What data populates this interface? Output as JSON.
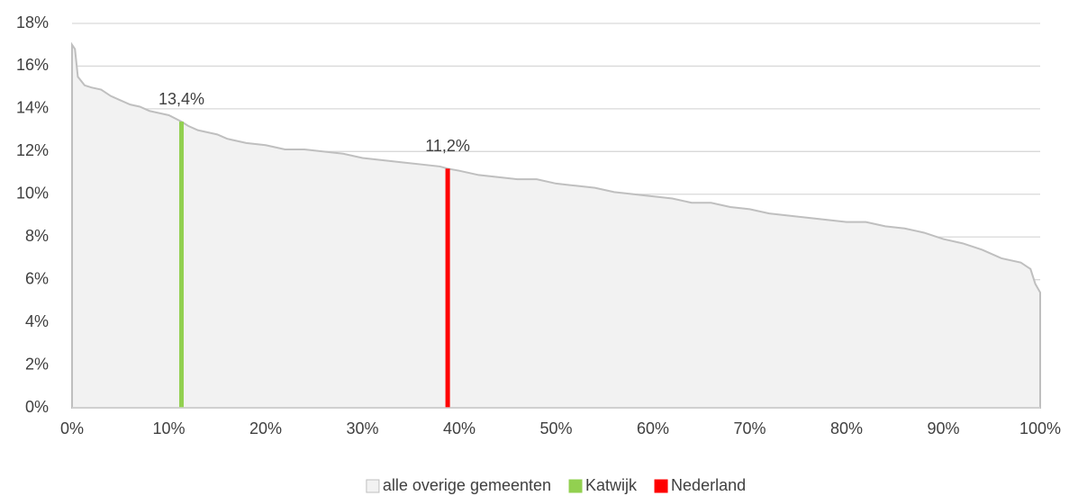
{
  "chart_data": {
    "type": "area",
    "xlim": [
      0,
      100
    ],
    "xticks": [
      {
        "value": 0,
        "label": "0%"
      },
      {
        "value": 10,
        "label": "10%"
      },
      {
        "value": 20,
        "label": "20%"
      },
      {
        "value": 30,
        "label": "30%"
      },
      {
        "value": 40,
        "label": "40%"
      },
      {
        "value": 50,
        "label": "50%"
      },
      {
        "value": 60,
        "label": "60%"
      },
      {
        "value": 70,
        "label": "70%"
      },
      {
        "value": 80,
        "label": "80%"
      },
      {
        "value": 90,
        "label": "90%"
      },
      {
        "value": 100,
        "label": "100%"
      }
    ],
    "ylim": [
      0,
      18
    ],
    "yticks": [
      {
        "value": 0,
        "label": "0%"
      },
      {
        "value": 2,
        "label": "2%"
      },
      {
        "value": 4,
        "label": "4%"
      },
      {
        "value": 6,
        "label": "6%"
      },
      {
        "value": 8,
        "label": "8%"
      },
      {
        "value": 10,
        "label": "10%"
      },
      {
        "value": 12,
        "label": "12%"
      },
      {
        "value": 14,
        "label": "14%"
      },
      {
        "value": 16,
        "label": "16%"
      },
      {
        "value": 18,
        "label": "18%"
      }
    ],
    "grid": true,
    "legend": "bottom",
    "series": [
      {
        "name": "alle overige gemeenten",
        "type": "area",
        "color": "#f2f2f2",
        "x": [
          0,
          0.3,
          0.6,
          1.3,
          2,
          3,
          4,
          5,
          6,
          7,
          8,
          9,
          10,
          11.3,
          12,
          13,
          14,
          15,
          16,
          18,
          20,
          22,
          24,
          26,
          28,
          30,
          32,
          34,
          36,
          38,
          38.8,
          40,
          42,
          44,
          46,
          48,
          50,
          52,
          54,
          56,
          58,
          60,
          62,
          64,
          66,
          68,
          70,
          72,
          74,
          76,
          78,
          80,
          82,
          84,
          86,
          88,
          90,
          92,
          94,
          96,
          98,
          99,
          99.5,
          100
        ],
        "values": [
          17.0,
          16.8,
          15.5,
          15.1,
          15.0,
          14.9,
          14.6,
          14.4,
          14.2,
          14.1,
          13.9,
          13.8,
          13.7,
          13.4,
          13.2,
          13.0,
          12.9,
          12.8,
          12.6,
          12.4,
          12.3,
          12.1,
          12.1,
          12.0,
          11.9,
          11.7,
          11.6,
          11.5,
          11.4,
          11.3,
          11.2,
          11.1,
          10.9,
          10.8,
          10.7,
          10.7,
          10.5,
          10.4,
          10.3,
          10.1,
          10.0,
          9.9,
          9.8,
          9.6,
          9.6,
          9.4,
          9.3,
          9.1,
          9.0,
          8.9,
          8.8,
          8.7,
          8.7,
          8.5,
          8.4,
          8.2,
          7.9,
          7.7,
          7.4,
          7.0,
          6.8,
          6.5,
          5.8,
          5.4
        ]
      },
      {
        "name": "Katwijk",
        "type": "bar",
        "color": "#92d050",
        "x": [
          11.3
        ],
        "values": [
          13.4
        ],
        "value_labels": [
          "13,4%"
        ]
      },
      {
        "name": "Nederland",
        "type": "bar",
        "color": "#ff0000",
        "x": [
          38.8
        ],
        "values": [
          11.2
        ],
        "value_labels": [
          "11,2%"
        ]
      }
    ]
  }
}
